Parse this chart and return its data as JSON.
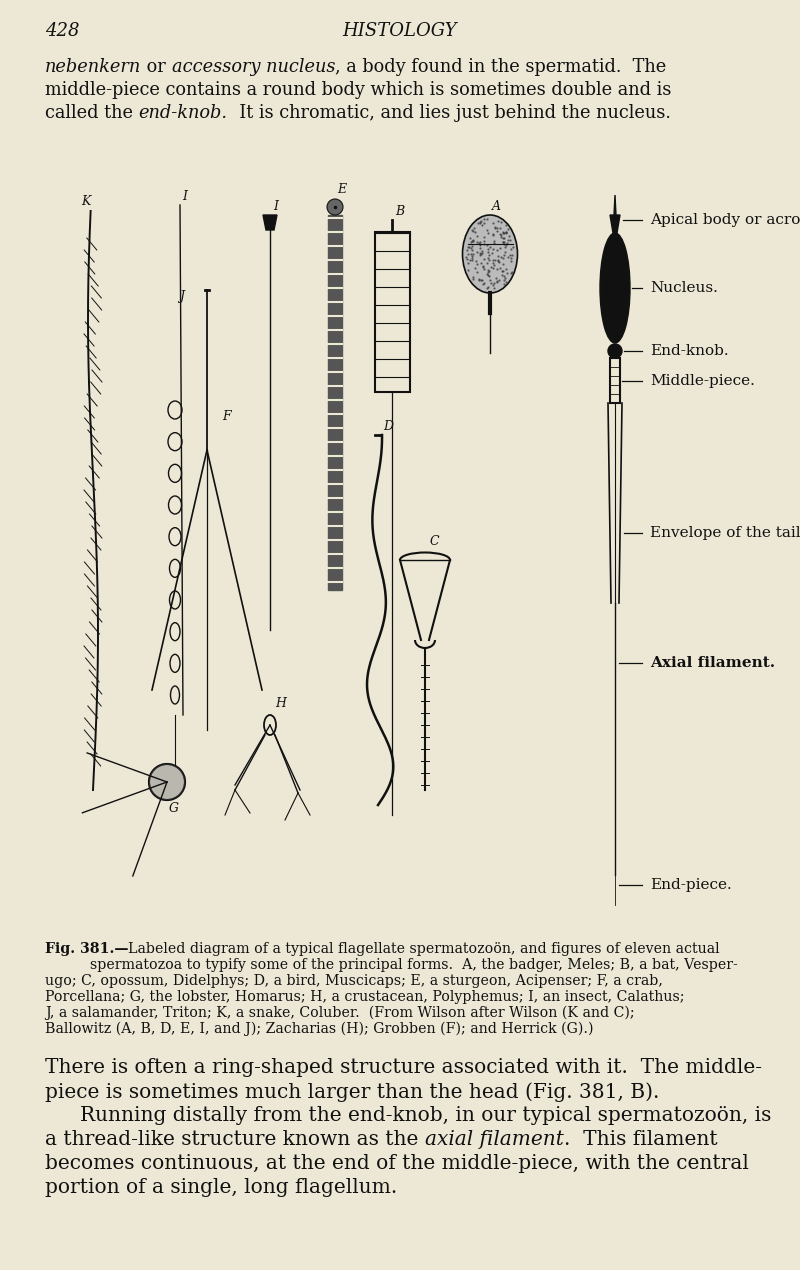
{
  "background_color": "#ede8d5",
  "page_number": "428",
  "page_title": "HISTOLOGY",
  "text_color": "#111111",
  "fig_caption_line1": "Fig. 381.—Labeled diagram of a typical flagellate spermatozoön, and figures of eleven actual",
  "fig_caption_line2": "spermatozoa to typify some of the principal forms.  A, the badger, Meles; B, a bat, Vesper-",
  "fig_caption_line3": "ugo; C, opossum, Didelphys; D, a bird, Muscicaps; E, a sturgeon, Acipenser; F, a crab,",
  "fig_caption_line4": "Porcellana; G, the lobster, Homarus; H, a crustacean, Polyphemus; I, an insect, Calathus;",
  "fig_caption_line5": "J, a salamander, Triton; K, a snake, Coluber.  (From Wilson after Wilson (K and C);",
  "fig_caption_line6": "Ballowitz (A, B, D, E, I, and J); Zacharias (H); Grobben (F); and Herrick (G).)",
  "para2_line1": "There is often a ring-shaped structure associated with it.  The middle-",
  "para2_line2": "piece is sometimes much larger than the head (Fig. 381, B).",
  "para2_line3": "    Running distally from the end-knob, in our typical spermatozoön, is",
  "para2_line4": "a thread-like structure known as the axial filament.  This filament",
  "para2_line5": "becomes continuous, at the end of the middle-piece, with the central",
  "para2_line6": "portion of a single, long flagellum."
}
